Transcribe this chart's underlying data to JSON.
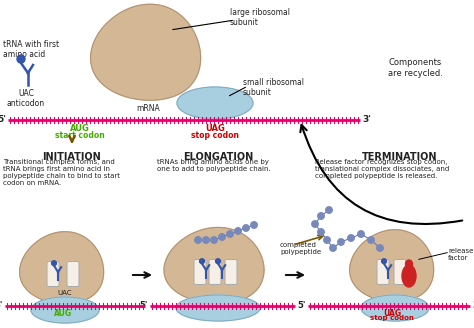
{
  "bg_color": "#ffffff",
  "mrna_color": "#e8006a",
  "large_subunit_color": "#d4b896",
  "large_subunit_edge": "#b09070",
  "small_subunit_color": "#a8cfe0",
  "small_subunit_edge": "#80aabf",
  "trna_color": "#3355aa",
  "polypeptide_color": "#7788bb",
  "polypeptide_edge": "#5566aa",
  "release_factor_color": "#cc2222",
  "arrow_brown": "#7a5500",
  "arrow_black": "#111111",
  "text_color": "#222222",
  "label_green": "#44aa00",
  "label_red": "#cc0000",
  "slot_color": "#f5efe8",
  "slot_edge": "#aaaaaa",
  "title_initiation": "INITIATION",
  "title_elongation": "ELONGATION",
  "title_termination": "TERMINATION",
  "desc_initiation": "Transitional complex forms, and\ntRNA brings first amino acid in\npolypeptide chain to bind to start\ncodon on mRNA.",
  "desc_elongation": "tRNAs bring amino acids one by\none to add to polypeptide chain.",
  "desc_termination": "Release factor recognizes stop codon,\ntranslational complex dissociates, and\ncompleted polypeptide is released.",
  "lbl_trna": "tRNA with first\namino acid",
  "lbl_uac": "UAC\nanticodon",
  "lbl_large": "large ribosomal\nsubunit",
  "lbl_small": "small ribosomal\nsubunit",
  "lbl_mrna": "mRNA",
  "lbl_recycled": "Components\nare recycled.",
  "lbl_aug": "AUG",
  "lbl_start": "start codon",
  "lbl_uag": "UAG",
  "lbl_stop": "stop codon",
  "lbl_uac_bot": "UAC",
  "lbl_aug_bot": "AUG",
  "lbl_uag_bot": "UAG",
  "lbl_stop_bot": "stop codon",
  "lbl_completed": "completed\npolypeptide",
  "lbl_release": "release\nfactor"
}
